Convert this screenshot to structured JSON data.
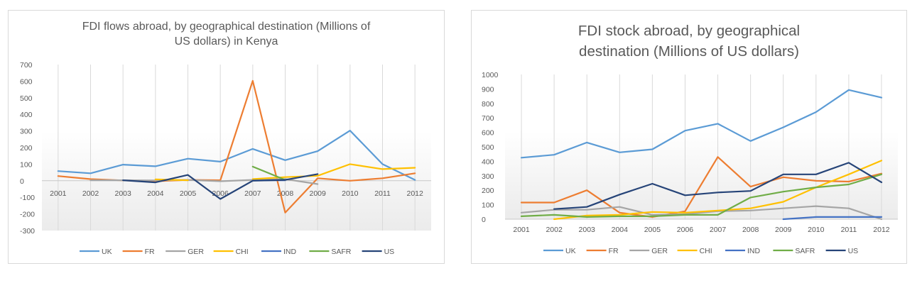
{
  "charts": [
    {
      "chart_data": {
        "type": "line",
        "title": "FDI flows abroad, by geographical destination  (Millions of\nUS dollars) in Kenya",
        "categories": [
          "2001",
          "2002",
          "2003",
          "2004",
          "2005",
          "2006",
          "2007",
          "2008",
          "2009",
          "2010",
          "2011",
          "2012"
        ],
        "y_ticks": [
          700,
          600,
          500,
          400,
          300,
          200,
          100,
          0,
          -100,
          -200,
          -300
        ],
        "ylim": [
          -300,
          700
        ],
        "grid": false,
        "legend_position": "bottom",
        "series": [
          {
            "name": "UK",
            "color": "#5b9bd5",
            "values": [
              58,
              45,
              97,
              87,
              133,
              115,
              192,
              124,
              178,
              302,
              100,
              5
            ]
          },
          {
            "name": "FR",
            "color": "#ed7d31",
            "values": [
              28,
              10,
              2,
              -3,
              5,
              3,
              602,
              -192,
              15,
              0,
              15,
              45
            ]
          },
          {
            "name": "GER",
            "color": "#a5a5a5",
            "values": [
              null,
              3,
              3,
              2,
              5,
              -3,
              5,
              10,
              -20,
              null,
              null,
              null
            ]
          },
          {
            "name": "CHI",
            "color": "#ffc000",
            "values": [
              null,
              null,
              null,
              8,
              3,
              null,
              10,
              22,
              30,
              100,
              70,
              78
            ]
          },
          {
            "name": "IND",
            "color": "#4472c4",
            "values": [
              null,
              null,
              null,
              null,
              null,
              null,
              2,
              3,
              null,
              null,
              null,
              null
            ]
          },
          {
            "name": "SAFR",
            "color": "#70ad47",
            "values": [
              null,
              null,
              null,
              null,
              null,
              null,
              85,
              5,
              null,
              null,
              null,
              null
            ]
          },
          {
            "name": "US",
            "color": "#264478",
            "values": [
              null,
              null,
              3,
              -10,
              35,
              -110,
              0,
              5,
              40,
              null,
              null,
              null
            ]
          }
        ]
      }
    },
    {
      "chart_data": {
        "type": "line",
        "title": "FDI stock abroad, by geographical\ndestination (Millions of US dollars)",
        "categories": [
          "2001",
          "2002",
          "2003",
          "2004",
          "2005",
          "2006",
          "2007",
          "2008",
          "2009",
          "2010",
          "2011",
          "2012"
        ],
        "y_ticks": [
          1000,
          900,
          800,
          700,
          600,
          500,
          400,
          300,
          200,
          100,
          0
        ],
        "ylim": [
          0,
          1000
        ],
        "grid": false,
        "legend_position": "bottom",
        "series": [
          {
            "name": "UK",
            "color": "#5b9bd5",
            "values": [
              425,
              445,
              530,
              462,
              483,
              612,
              660,
              540,
              635,
              740,
              893,
              840
            ]
          },
          {
            "name": "FR",
            "color": "#ed7d31",
            "values": [
              115,
              115,
              200,
              45,
              15,
              55,
              430,
              225,
              290,
              265,
              260,
              315
            ]
          },
          {
            "name": "GER",
            "color": "#a5a5a5",
            "values": [
              45,
              65,
              65,
              85,
              30,
              35,
              55,
              60,
              75,
              90,
              75,
              0
            ]
          },
          {
            "name": "CHI",
            "color": "#ffc000",
            "values": [
              null,
              0,
              25,
              30,
              50,
              45,
              60,
              75,
              120,
              220,
              310,
              405
            ]
          },
          {
            "name": "IND",
            "color": "#4472c4",
            "values": [
              null,
              null,
              null,
              null,
              null,
              null,
              null,
              null,
              0,
              15,
              15,
              15
            ]
          },
          {
            "name": "SAFR",
            "color": "#70ad47",
            "values": [
              20,
              30,
              15,
              20,
              20,
              30,
              30,
              150,
              190,
              220,
              240,
              310
            ]
          },
          {
            "name": "US",
            "color": "#264478",
            "values": [
              null,
              70,
              85,
              170,
              245,
              165,
              185,
              195,
              310,
              310,
              390,
              255
            ]
          }
        ]
      }
    }
  ]
}
